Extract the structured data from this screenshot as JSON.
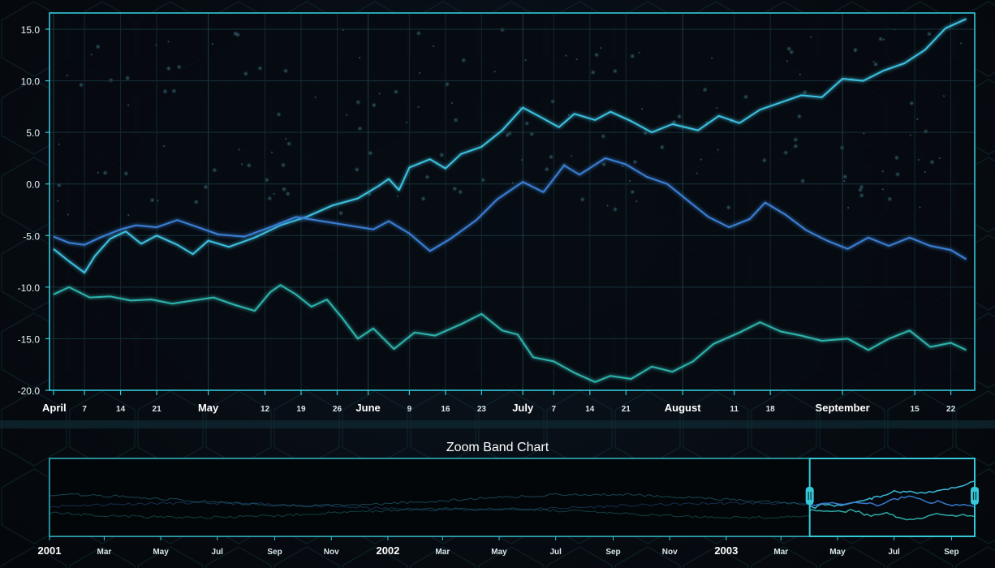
{
  "chart_data": [
    {
      "type": "line",
      "title": "",
      "xlabel": "",
      "ylabel": "",
      "x_range": [
        "2003-04-01",
        "2003-09-26"
      ],
      "ylim": [
        -20,
        17
      ],
      "y_ticks": [
        "15.0",
        "10.0",
        "5.0",
        "0.0",
        "-5.0",
        "-10.0",
        "-15.0",
        "-20.0"
      ],
      "x_ticks": [
        {
          "date": "2003-04-01",
          "label": "April",
          "major": true
        },
        {
          "date": "2003-04-07",
          "label": "7"
        },
        {
          "date": "2003-04-14",
          "label": "14"
        },
        {
          "date": "2003-04-21",
          "label": "21"
        },
        {
          "date": "2003-05-01",
          "label": "May",
          "major": true
        },
        {
          "date": "2003-05-12",
          "label": "12"
        },
        {
          "date": "2003-05-19",
          "label": "19"
        },
        {
          "date": "2003-05-26",
          "label": "26"
        },
        {
          "date": "2003-06-01",
          "label": "June",
          "major": true
        },
        {
          "date": "2003-06-09",
          "label": "9"
        },
        {
          "date": "2003-06-16",
          "label": "16"
        },
        {
          "date": "2003-06-23",
          "label": "23"
        },
        {
          "date": "2003-07-01",
          "label": "July",
          "major": true
        },
        {
          "date": "2003-07-07",
          "label": "7"
        },
        {
          "date": "2003-07-14",
          "label": "14"
        },
        {
          "date": "2003-07-21",
          "label": "21"
        },
        {
          "date": "2003-08-01",
          "label": "August",
          "major": true
        },
        {
          "date": "2003-08-11",
          "label": "11"
        },
        {
          "date": "2003-08-18",
          "label": "18"
        },
        {
          "date": "2003-09-01",
          "label": "September",
          "major": true
        },
        {
          "date": "2003-09-15",
          "label": "15"
        },
        {
          "date": "2003-09-22",
          "label": "22"
        }
      ],
      "series": [
        {
          "color": "#3ec1e0",
          "points": [
            [
              "2003-04-01",
              -6.3
            ],
            [
              "2003-04-04",
              -7.5
            ],
            [
              "2003-04-07",
              -8.6
            ],
            [
              "2003-04-09",
              -7.0
            ],
            [
              "2003-04-12",
              -5.3
            ],
            [
              "2003-04-15",
              -4.6
            ],
            [
              "2003-04-18",
              -5.8
            ],
            [
              "2003-04-21",
              -5.0
            ],
            [
              "2003-04-25",
              -5.9
            ],
            [
              "2003-04-28",
              -6.8
            ],
            [
              "2003-05-01",
              -5.5
            ],
            [
              "2003-05-05",
              -6.1
            ],
            [
              "2003-05-10",
              -5.2
            ],
            [
              "2003-05-15",
              -4.0
            ],
            [
              "2003-05-20",
              -3.2
            ],
            [
              "2003-05-25",
              -2.1
            ],
            [
              "2003-05-30",
              -1.4
            ],
            [
              "2003-06-03",
              -0.2
            ],
            [
              "2003-06-05",
              0.5
            ],
            [
              "2003-06-07",
              -0.6
            ],
            [
              "2003-06-09",
              1.6
            ],
            [
              "2003-06-13",
              2.4
            ],
            [
              "2003-06-16",
              1.5
            ],
            [
              "2003-06-19",
              2.9
            ],
            [
              "2003-06-23",
              3.6
            ],
            [
              "2003-06-27",
              5.2
            ],
            [
              "2003-07-01",
              7.4
            ],
            [
              "2003-07-04",
              6.6
            ],
            [
              "2003-07-08",
              5.5
            ],
            [
              "2003-07-11",
              6.8
            ],
            [
              "2003-07-15",
              6.2
            ],
            [
              "2003-07-18",
              7.0
            ],
            [
              "2003-07-22",
              6.1
            ],
            [
              "2003-07-26",
              5.0
            ],
            [
              "2003-07-30",
              5.8
            ],
            [
              "2003-08-04",
              5.2
            ],
            [
              "2003-08-08",
              6.6
            ],
            [
              "2003-08-12",
              5.9
            ],
            [
              "2003-08-16",
              7.2
            ],
            [
              "2003-08-20",
              7.9
            ],
            [
              "2003-08-24",
              8.6
            ],
            [
              "2003-08-28",
              8.4
            ],
            [
              "2003-09-01",
              10.2
            ],
            [
              "2003-09-05",
              10.0
            ],
            [
              "2003-09-09",
              11.0
            ],
            [
              "2003-09-13",
              11.7
            ],
            [
              "2003-09-17",
              13.0
            ],
            [
              "2003-09-21",
              15.1
            ],
            [
              "2003-09-25",
              16.0
            ]
          ]
        },
        {
          "color": "#3a7fd6",
          "points": [
            [
              "2003-04-01",
              -5.1
            ],
            [
              "2003-04-04",
              -5.7
            ],
            [
              "2003-04-07",
              -5.9
            ],
            [
              "2003-04-10",
              -5.2
            ],
            [
              "2003-04-14",
              -4.4
            ],
            [
              "2003-04-17",
              -4.0
            ],
            [
              "2003-04-21",
              -4.2
            ],
            [
              "2003-04-25",
              -3.5
            ],
            [
              "2003-04-29",
              -4.2
            ],
            [
              "2003-05-03",
              -4.9
            ],
            [
              "2003-05-08",
              -5.1
            ],
            [
              "2003-05-13",
              -4.2
            ],
            [
              "2003-05-18",
              -3.2
            ],
            [
              "2003-05-23",
              -3.6
            ],
            [
              "2003-05-28",
              -4.0
            ],
            [
              "2003-06-02",
              -4.4
            ],
            [
              "2003-06-05",
              -3.6
            ],
            [
              "2003-06-09",
              -4.8
            ],
            [
              "2003-06-13",
              -6.5
            ],
            [
              "2003-06-17",
              -5.3
            ],
            [
              "2003-06-22",
              -3.5
            ],
            [
              "2003-06-26",
              -1.5
            ],
            [
              "2003-07-01",
              0.2
            ],
            [
              "2003-07-05",
              -0.8
            ],
            [
              "2003-07-09",
              1.8
            ],
            [
              "2003-07-12",
              0.9
            ],
            [
              "2003-07-17",
              2.5
            ],
            [
              "2003-07-21",
              1.9
            ],
            [
              "2003-07-25",
              0.7
            ],
            [
              "2003-07-29",
              0.0
            ],
            [
              "2003-08-02",
              -1.6
            ],
            [
              "2003-08-06",
              -3.2
            ],
            [
              "2003-08-10",
              -4.2
            ],
            [
              "2003-08-14",
              -3.4
            ],
            [
              "2003-08-17",
              -1.8
            ],
            [
              "2003-08-21",
              -3.0
            ],
            [
              "2003-08-25",
              -4.5
            ],
            [
              "2003-08-29",
              -5.5
            ],
            [
              "2003-09-02",
              -6.3
            ],
            [
              "2003-09-06",
              -5.2
            ],
            [
              "2003-09-10",
              -6.0
            ],
            [
              "2003-09-14",
              -5.2
            ],
            [
              "2003-09-18",
              -6.0
            ],
            [
              "2003-09-22",
              -6.4
            ],
            [
              "2003-09-25",
              -7.3
            ]
          ]
        },
        {
          "color": "#2fb3ad",
          "points": [
            [
              "2003-04-01",
              -10.7
            ],
            [
              "2003-04-04",
              -10.0
            ],
            [
              "2003-04-08",
              -11.0
            ],
            [
              "2003-04-12",
              -10.9
            ],
            [
              "2003-04-16",
              -11.3
            ],
            [
              "2003-04-20",
              -11.2
            ],
            [
              "2003-04-24",
              -11.6
            ],
            [
              "2003-04-28",
              -11.3
            ],
            [
              "2003-05-02",
              -11.0
            ],
            [
              "2003-05-06",
              -11.7
            ],
            [
              "2003-05-10",
              -12.3
            ],
            [
              "2003-05-13",
              -10.5
            ],
            [
              "2003-05-15",
              -9.8
            ],
            [
              "2003-05-18",
              -10.7
            ],
            [
              "2003-05-21",
              -11.9
            ],
            [
              "2003-05-24",
              -11.2
            ],
            [
              "2003-05-27",
              -13.0
            ],
            [
              "2003-05-30",
              -15.0
            ],
            [
              "2003-06-02",
              -14.0
            ],
            [
              "2003-06-06",
              -16.0
            ],
            [
              "2003-06-10",
              -14.4
            ],
            [
              "2003-06-14",
              -14.7
            ],
            [
              "2003-06-19",
              -13.6
            ],
            [
              "2003-06-23",
              -12.6
            ],
            [
              "2003-06-27",
              -14.2
            ],
            [
              "2003-06-30",
              -14.6
            ],
            [
              "2003-07-03",
              -16.8
            ],
            [
              "2003-07-07",
              -17.2
            ],
            [
              "2003-07-11",
              -18.3
            ],
            [
              "2003-07-15",
              -19.2
            ],
            [
              "2003-07-18",
              -18.6
            ],
            [
              "2003-07-22",
              -18.9
            ],
            [
              "2003-07-26",
              -17.7
            ],
            [
              "2003-07-30",
              -18.2
            ],
            [
              "2003-08-03",
              -17.2
            ],
            [
              "2003-08-07",
              -15.5
            ],
            [
              "2003-08-12",
              -14.4
            ],
            [
              "2003-08-16",
              -13.4
            ],
            [
              "2003-08-20",
              -14.3
            ],
            [
              "2003-08-24",
              -14.7
            ],
            [
              "2003-08-28",
              -15.2
            ],
            [
              "2003-09-02",
              -15.0
            ],
            [
              "2003-09-06",
              -16.1
            ],
            [
              "2003-09-10",
              -15.0
            ],
            [
              "2003-09-14",
              -14.2
            ],
            [
              "2003-09-18",
              -15.8
            ],
            [
              "2003-09-22",
              -15.4
            ],
            [
              "2003-09-25",
              -16.1
            ]
          ]
        }
      ]
    },
    {
      "type": "line",
      "title": "Zoom Band Chart",
      "x_range": [
        "2001-01-01",
        "2003-09-26"
      ],
      "selection": [
        "2003-04-01",
        "2003-09-26"
      ],
      "x_ticks": [
        {
          "date": "2001-01-01",
          "label": "2001",
          "major": true
        },
        {
          "date": "2001-03-01",
          "label": "Mar"
        },
        {
          "date": "2001-05-01",
          "label": "May"
        },
        {
          "date": "2001-07-01",
          "label": "Jul"
        },
        {
          "date": "2001-09-01",
          "label": "Sep"
        },
        {
          "date": "2001-11-01",
          "label": "Nov"
        },
        {
          "date": "2002-01-01",
          "label": "2002",
          "major": true
        },
        {
          "date": "2002-03-01",
          "label": "Mar"
        },
        {
          "date": "2002-05-01",
          "label": "May"
        },
        {
          "date": "2002-07-01",
          "label": "Jul"
        },
        {
          "date": "2002-09-01",
          "label": "Sep"
        },
        {
          "date": "2002-11-01",
          "label": "Nov"
        },
        {
          "date": "2003-01-01",
          "label": "2003",
          "major": true
        },
        {
          "date": "2003-03-01",
          "label": "Mar"
        },
        {
          "date": "2003-05-01",
          "label": "May"
        },
        {
          "date": "2003-07-01",
          "label": "Jul"
        },
        {
          "date": "2003-09-01",
          "label": "Sep"
        }
      ]
    }
  ]
}
